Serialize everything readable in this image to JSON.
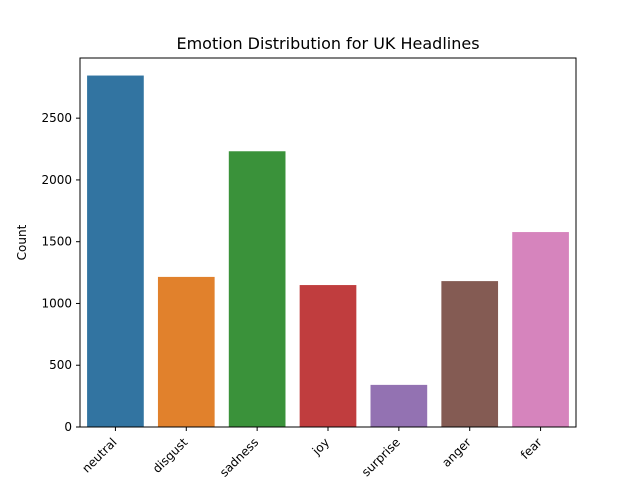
{
  "chart_data": {
    "type": "bar",
    "title": "Emotion Distribution for UK Headlines",
    "xlabel": "",
    "ylabel": "Count",
    "categories": [
      "neutral",
      "disgust",
      "sadness",
      "joy",
      "surprise",
      "anger",
      "fear"
    ],
    "values": [
      2845,
      1215,
      2232,
      1149,
      341,
      1181,
      1578
    ],
    "colors": [
      "#3274a1",
      "#e1812c",
      "#3a923a",
      "#c03d3e",
      "#9372b2",
      "#845b53",
      "#d684bd"
    ],
    "ylim": [
      0,
      2987
    ],
    "yticks": [
      0,
      500,
      1000,
      1500,
      2000,
      2500
    ],
    "grid": false,
    "legend": "none"
  }
}
